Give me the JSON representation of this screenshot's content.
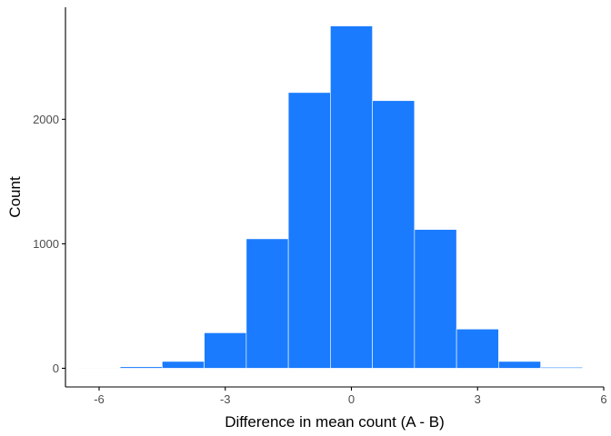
{
  "chart_data": {
    "type": "bar",
    "xlabel": "Difference in mean count (A - B)",
    "ylabel": "Count",
    "xlim": [
      -6.8,
      6.0
    ],
    "ylim": [
      -150,
      2900
    ],
    "x_ticks": [
      -6,
      -3,
      0,
      3,
      6
    ],
    "y_ticks": [
      0,
      1000,
      2000
    ],
    "bin_width": 1,
    "bins": [
      {
        "x": -6,
        "count": 3
      },
      {
        "x": -5,
        "count": 12
      },
      {
        "x": -4,
        "count": 55
      },
      {
        "x": -3,
        "count": 285
      },
      {
        "x": -2,
        "count": 1040
      },
      {
        "x": -1,
        "count": 2215
      },
      {
        "x": 0,
        "count": 2750
      },
      {
        "x": 1,
        "count": 2150
      },
      {
        "x": 2,
        "count": 1115
      },
      {
        "x": 3,
        "count": 315
      },
      {
        "x": 4,
        "count": 55
      },
      {
        "x": 5,
        "count": 8
      }
    ],
    "grid": false,
    "colors": {
      "bar_fill": "#1a7bff",
      "bar_stroke": "#ffffff",
      "axis_line": "#000000",
      "tick_label": "#4d4d4d"
    }
  }
}
